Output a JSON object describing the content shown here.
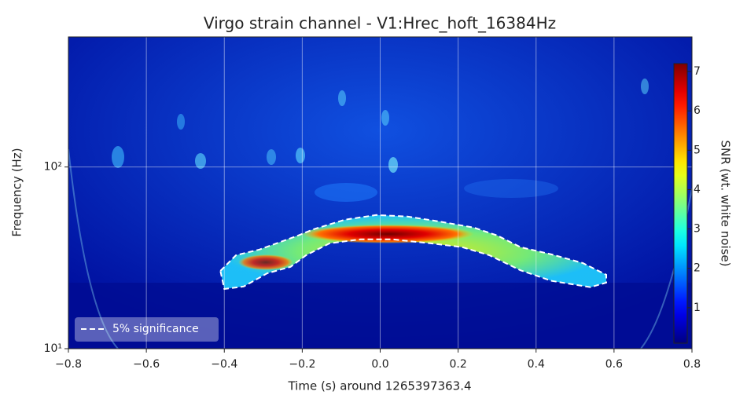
{
  "chart_data": {
    "type": "spectrogram",
    "title": "Virgo strain channel - V1:Hrec_hoft_16384Hz",
    "xlabel": "Time (s) around 1265397363.4",
    "ylabel": "Frequency (Hz)",
    "xlim": [
      -0.8,
      0.8
    ],
    "xticks": [
      {
        "value": -0.8,
        "label": "−0.8"
      },
      {
        "value": -0.6,
        "label": "−0.6"
      },
      {
        "value": -0.4,
        "label": "−0.4"
      },
      {
        "value": -0.2,
        "label": "−0.2"
      },
      {
        "value": 0,
        "label": "0.0"
      },
      0.2,
      0.4,
      0.6,
      0.8
    ],
    "ylim": [
      10,
      520
    ],
    "ylog": true,
    "yticks": [
      {
        "value": 10,
        "label": "10¹"
      },
      {
        "value": 100,
        "label": "10²"
      }
    ],
    "grid": true,
    "legend": "lower left",
    "colorbar": {
      "label": "SNR (wt. white noise)",
      "lim": [
        0.1,
        7.2
      ],
      "ticks": [
        1,
        2,
        3,
        4,
        5,
        6,
        7
      ],
      "colormap": "jet"
    },
    "series": [
      {
        "name": "5% significance",
        "color": "#ffffff",
        "x": [
          -0.41,
          -0.37,
          -0.31,
          -0.21,
          -0.17,
          -0.09,
          -0.01,
          0.07,
          0.15,
          0.24,
          0.3,
          0.36,
          0.44,
          0.52,
          0.58,
          0.58,
          0.54,
          0.44,
          0.36,
          0.28,
          0.21,
          0.13,
          0.03,
          -0.05,
          -0.13,
          -0.19,
          -0.23,
          -0.29,
          -0.35,
          -0.4
        ],
        "values": [
          26.8,
          32.7,
          35.1,
          42,
          45.5,
          51.3,
          54.4,
          53.4,
          50.2,
          46.4,
          42,
          36.2,
          33,
          29.6,
          25.5,
          23.1,
          21.8,
          23.6,
          27,
          32.7,
          36.2,
          38,
          40,
          40,
          38,
          32.7,
          28.2,
          26,
          22,
          21.3
        ]
      }
    ]
  }
}
